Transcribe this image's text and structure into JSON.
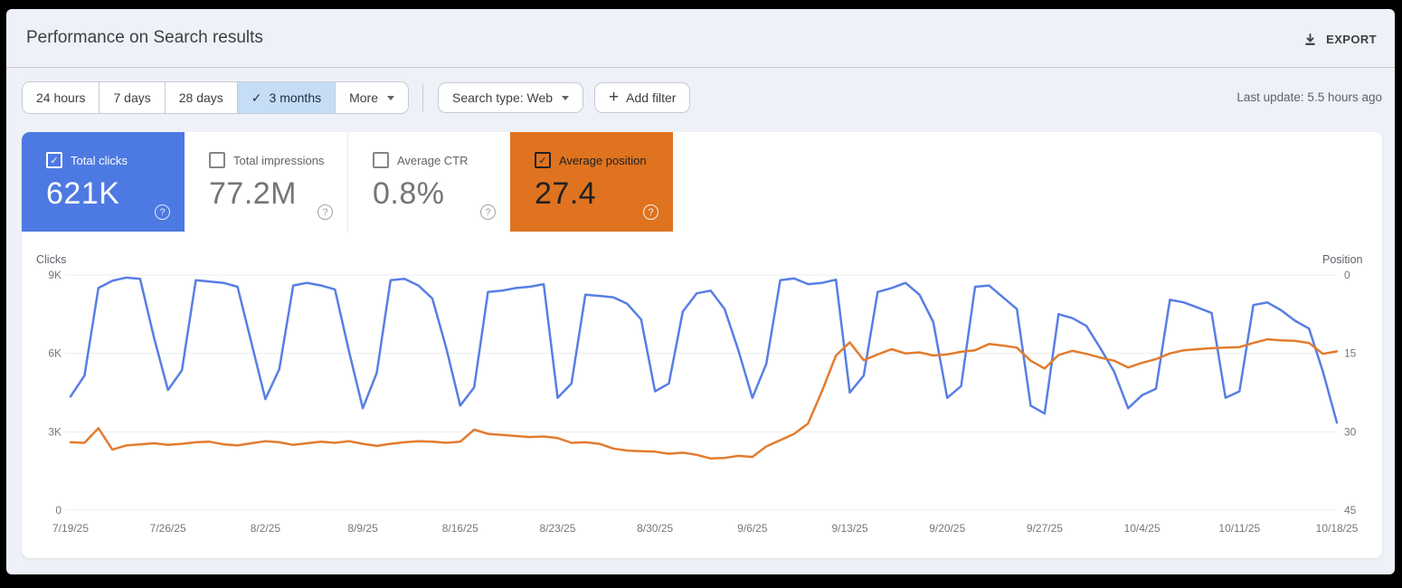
{
  "header": {
    "title": "Performance on Search results",
    "export_label": "EXPORT"
  },
  "filters": {
    "date_ranges": [
      {
        "label": "24 hours",
        "selected": false
      },
      {
        "label": "7 days",
        "selected": false
      },
      {
        "label": "28 days",
        "selected": false
      },
      {
        "label": "3 months",
        "selected": true
      },
      {
        "label": "More",
        "selected": false,
        "has_dropdown": true
      }
    ],
    "selected_check_glyph": "✓",
    "search_type_label": "Search type: Web",
    "add_filter_label": "Add filter",
    "plus_glyph": "+",
    "last_update": "Last update: 5.5 hours ago"
  },
  "metrics": {
    "cards": [
      {
        "label": "Total clicks",
        "value": "621K",
        "checked": true,
        "style": "blue",
        "bg": "#4d79e2"
      },
      {
        "label": "Total impressions",
        "value": "77.2M",
        "checked": false,
        "style": "white"
      },
      {
        "label": "Average CTR",
        "value": "0.8%",
        "checked": false,
        "style": "white"
      },
      {
        "label": "Average position",
        "value": "27.4",
        "checked": true,
        "style": "orange",
        "bg": "#df731f"
      }
    ],
    "help_glyph": "?",
    "check_glyph": "✓"
  },
  "chart_data": {
    "type": "line",
    "title": "Performance on Search results",
    "x_tick_labels": [
      "7/19/25",
      "7/26/25",
      "8/2/25",
      "8/9/25",
      "8/16/25",
      "8/23/25",
      "8/30/25",
      "9/6/25",
      "9/13/25",
      "9/20/25",
      "9/27/25",
      "10/4/25",
      "10/11/25",
      "10/18/25"
    ],
    "n_points": 92,
    "grid": true,
    "legend_position": "none",
    "left_axis": {
      "title": "Clicks",
      "tick_labels": [
        "9K",
        "6K",
        "3K",
        "0"
      ],
      "min": 0,
      "max": 9000,
      "inverted": false
    },
    "right_axis": {
      "title": "Position",
      "tick_labels": [
        "0",
        "15",
        "30",
        "45"
      ],
      "min": 0,
      "max": 45,
      "inverted": true
    },
    "series": [
      {
        "name": "Total clicks",
        "axis": "left",
        "color": "#587ee5",
        "values": [
          4350,
          5150,
          8500,
          8780,
          8900,
          8850,
          6600,
          4600,
          5350,
          8800,
          8750,
          8700,
          8550,
          6400,
          4250,
          5400,
          8600,
          8700,
          8600,
          8450,
          6100,
          3900,
          5250,
          8800,
          8850,
          8600,
          8100,
          6200,
          4000,
          4700,
          8350,
          8400,
          8500,
          8550,
          8650,
          4300,
          4850,
          8250,
          8200,
          8150,
          7900,
          7300,
          4550,
          4850,
          7600,
          8300,
          8400,
          7700,
          6100,
          4300,
          5600,
          8800,
          8870,
          8650,
          8700,
          8820,
          4500,
          5150,
          8350,
          8500,
          8700,
          8250,
          7200,
          4300,
          4750,
          8550,
          8600,
          8150,
          7700,
          4000,
          3700,
          7500,
          7350,
          7050,
          6200,
          5300,
          3900,
          4400,
          4650,
          8050,
          7950,
          7750,
          7550,
          4300,
          4550,
          7850,
          7950,
          7650,
          7250,
          6950,
          5300,
          3350
        ]
      },
      {
        "name": "Average position",
        "axis": "right",
        "color": "#e27c30",
        "values": [
          32.0,
          32.1,
          29.3,
          33.4,
          32.6,
          32.4,
          32.2,
          32.5,
          32.3,
          32.0,
          31.9,
          32.4,
          32.6,
          32.2,
          31.8,
          32.0,
          32.5,
          32.2,
          31.9,
          32.1,
          31.8,
          32.3,
          32.7,
          32.3,
          32.0,
          31.8,
          31.9,
          32.1,
          31.9,
          29.6,
          30.4,
          30.6,
          30.8,
          31.0,
          30.9,
          31.2,
          32.1,
          32.0,
          32.3,
          33.2,
          33.6,
          33.7,
          33.8,
          34.2,
          34.0,
          34.4,
          35.1,
          35.0,
          34.6,
          34.8,
          32.8,
          31.6,
          30.4,
          28.4,
          22.2,
          15.4,
          12.9,
          16.3,
          15.2,
          14.2,
          15.0,
          14.8,
          15.4,
          15.2,
          14.7,
          14.4,
          13.2,
          13.5,
          13.9,
          16.4,
          17.9,
          15.3,
          14.5,
          15.1,
          15.8,
          16.4,
          17.7,
          16.8,
          16.1,
          15.0,
          14.4,
          14.2,
          14.0,
          13.9,
          13.8,
          13.0,
          12.3,
          12.5,
          12.6,
          13.0,
          15.1,
          14.6
        ]
      }
    ]
  },
  "colors": {
    "page_bg": "#eef1f7",
    "panel_bg": "#ffffff",
    "clicks_blue": "#587ee5",
    "position_orange": "#e27c30",
    "card_blue": "#4d79e2",
    "card_orange": "#df731f",
    "selected_chip_bg": "#c5ddf5",
    "gridline": "#ebedf0"
  }
}
